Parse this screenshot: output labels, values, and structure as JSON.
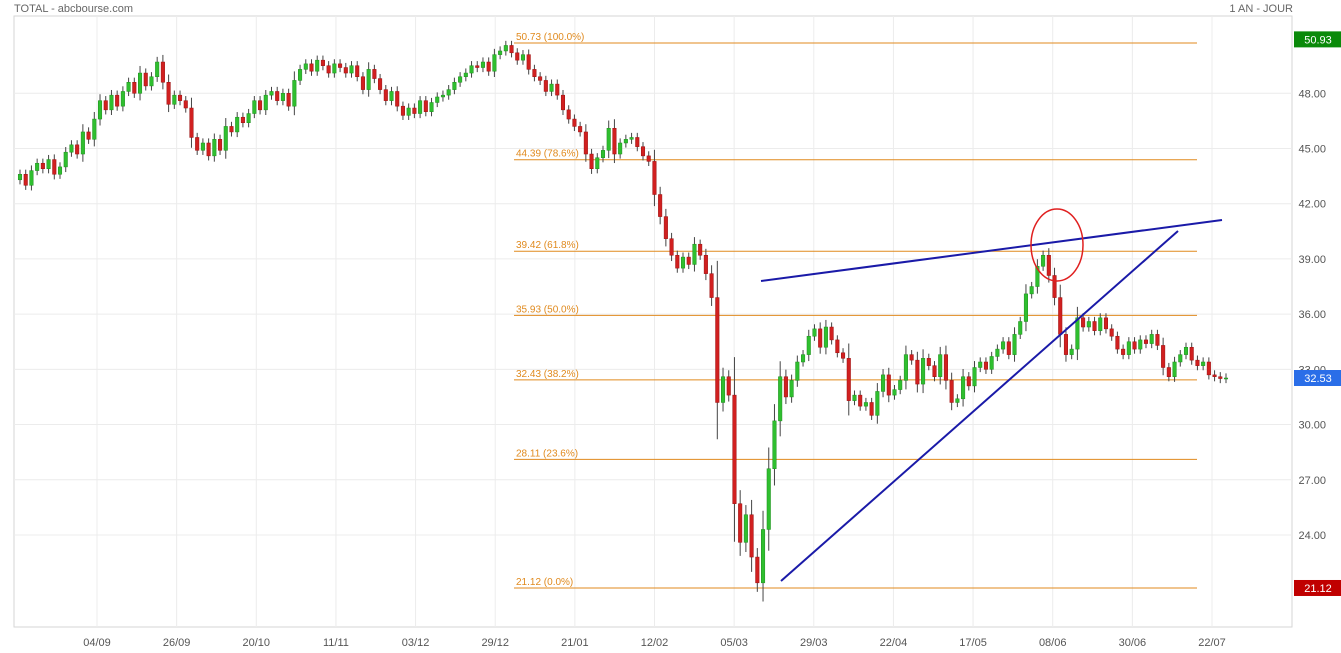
{
  "header": {
    "left": "TOTAL - abcbourse.com",
    "right": "1 AN - JOUR"
  },
  "chart_data": {
    "type": "candlestick",
    "ylim": [
      19.0,
      52.2
    ],
    "y_ticks": [
      "48.00",
      "45.00",
      "42.00",
      "39.00",
      "36.00",
      "33.00",
      "30.00",
      "27.00",
      "24.00"
    ],
    "x_ticks": [
      "04/09",
      "26/09",
      "20/10",
      "11/11",
      "03/12",
      "29/12",
      "21/01",
      "12/02",
      "05/03",
      "29/03",
      "22/04",
      "17/05",
      "08/06",
      "30/06",
      "22/07"
    ],
    "fib_levels": [
      {
        "value": 50.73,
        "label": "50.73 (100.0%)"
      },
      {
        "value": 44.39,
        "label": "44.39 (78.6%)"
      },
      {
        "value": 39.42,
        "label": "39.42 (61.8%)"
      },
      {
        "value": 35.93,
        "label": "35.93 (50.0%)"
      },
      {
        "value": 32.43,
        "label": "32.43 (38.2%)"
      },
      {
        "value": 28.11,
        "label": "28.11 (23.6%)"
      },
      {
        "value": 21.12,
        "label": "21.12 (0.0%)"
      }
    ],
    "price_tags": [
      {
        "label": "50.93",
        "value": 50.93,
        "color": "#0a8a0a"
      },
      {
        "label": "32.53",
        "value": 32.53,
        "color": "#2a6ee8"
      },
      {
        "label": "21.12",
        "value": 21.12,
        "color": "#c00000"
      }
    ],
    "closes": [
      43.6,
      43.0,
      43.8,
      44.2,
      43.9,
      44.4,
      43.6,
      44.0,
      44.8,
      45.2,
      44.7,
      45.9,
      45.5,
      46.6,
      47.6,
      47.1,
      47.9,
      47.3,
      48.1,
      48.6,
      48.0,
      49.1,
      48.4,
      48.9,
      49.7,
      48.6,
      47.4,
      47.9,
      47.6,
      47.2,
      45.6,
      44.9,
      45.3,
      44.6,
      45.5,
      44.9,
      46.2,
      45.9,
      46.7,
      46.4,
      46.9,
      47.6,
      47.1,
      47.9,
      48.1,
      47.6,
      48.0,
      47.3,
      48.7,
      49.3,
      49.6,
      49.2,
      49.8,
      49.5,
      49.1,
      49.6,
      49.4,
      49.1,
      49.5,
      48.9,
      48.2,
      49.3,
      48.8,
      48.2,
      47.6,
      48.1,
      47.3,
      46.8,
      47.2,
      46.9,
      47.6,
      47.0,
      47.5,
      47.8,
      47.9,
      48.2,
      48.6,
      48.9,
      49.1,
      49.5,
      49.4,
      49.7,
      49.2,
      50.1,
      50.3,
      50.6,
      50.2,
      49.8,
      50.1,
      49.3,
      48.9,
      48.7,
      48.1,
      48.5,
      47.9,
      47.1,
      46.6,
      46.2,
      45.9,
      44.7,
      43.9,
      44.5,
      44.9,
      46.1,
      44.7,
      45.3,
      45.5,
      45.6,
      45.1,
      44.6,
      44.3,
      42.5,
      41.3,
      40.1,
      39.2,
      38.5,
      39.1,
      38.7,
      39.8,
      39.2,
      38.2,
      36.9,
      31.2,
      32.6,
      31.6,
      25.7,
      23.6,
      25.1,
      22.8,
      21.4,
      24.3,
      27.6,
      30.2,
      32.6,
      31.5,
      32.4,
      33.4,
      33.8,
      34.8,
      35.2,
      34.2,
      35.3,
      34.6,
      33.9,
      33.6,
      31.3,
      31.6,
      31.0,
      31.2,
      30.5,
      31.8,
      32.7,
      31.6,
      31.9,
      32.4,
      33.8,
      33.5,
      32.2,
      33.6,
      33.2,
      32.6,
      33.8,
      32.4,
      31.2,
      31.4,
      32.6,
      32.1,
      33.1,
      33.4,
      33.0,
      33.7,
      34.1,
      34.5,
      33.8,
      34.9,
      35.6,
      37.1,
      37.5,
      38.6,
      39.2,
      38.1,
      36.9,
      34.9,
      33.8,
      34.1,
      35.8,
      35.3,
      35.6,
      35.1,
      35.8,
      35.2,
      34.8,
      34.1,
      33.8,
      34.5,
      34.1,
      34.6,
      34.4,
      34.9,
      34.3,
      33.1,
      32.6,
      33.4,
      33.8,
      34.2,
      33.5,
      33.2,
      33.4,
      32.7,
      32.6,
      32.5,
      32.53
    ]
  }
}
